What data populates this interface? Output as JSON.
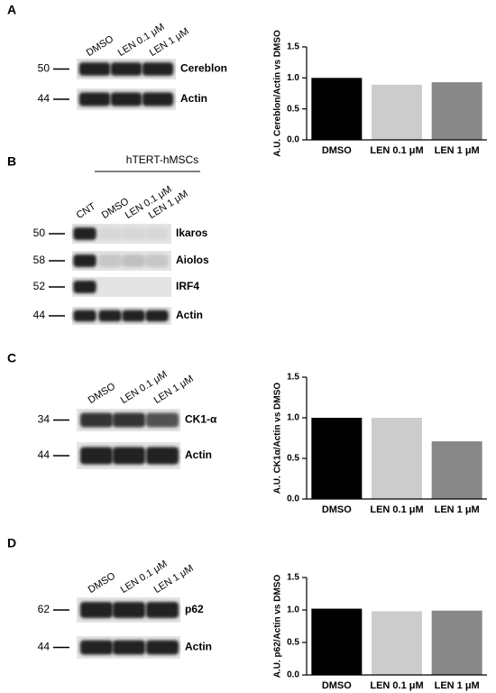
{
  "blots": [
    {
      "panel": "A",
      "lanes": [
        "DMSO",
        "LEN 0.1 μM",
        "LEN 1 μM"
      ],
      "rows": [
        {
          "marker": "50",
          "label": "Cereblon"
        },
        {
          "marker": "44",
          "label": "Actin"
        }
      ]
    },
    {
      "panel": "B",
      "group": "hTERT-hMSCs",
      "lanes": [
        "CNT",
        "DMSO",
        "LEN 0.1 μM",
        "LEN 1 μM"
      ],
      "rows": [
        {
          "marker": "50",
          "label": "Ikaros"
        },
        {
          "marker": "58",
          "label": "Aiolos"
        },
        {
          "marker": "52",
          "label": "IRF4"
        },
        {
          "marker": "44",
          "label": "Actin"
        }
      ]
    },
    {
      "panel": "C",
      "lanes": [
        "DMSO",
        "LEN 0.1 μM",
        "LEN 1 μM"
      ],
      "rows": [
        {
          "marker": "34",
          "label": "CK1-α"
        },
        {
          "marker": "44",
          "label": "Actin"
        }
      ]
    },
    {
      "panel": "D",
      "lanes": [
        "DMSO",
        "LEN 0.1 μM",
        "LEN 1 μM"
      ],
      "rows": [
        {
          "marker": "62",
          "label": "p62"
        },
        {
          "marker": "44",
          "label": "Actin"
        }
      ]
    }
  ],
  "chart_data": [
    {
      "type": "bar",
      "ylabel": "A.U. Cereblon/Actin vs DMSO",
      "categories": [
        "DMSO",
        "LEN 0.1 μM",
        "LEN 1 μM"
      ],
      "values": [
        1.0,
        0.89,
        0.93
      ],
      "colors": [
        "#000000",
        "#cccccc",
        "#888888"
      ],
      "ylim": [
        0,
        1.5
      ],
      "yticks": [
        {
          "value": 0,
          "label": "0.0"
        },
        {
          "value": 0.5,
          "label": "0.5"
        },
        {
          "value": 1,
          "label": "1.0"
        },
        {
          "value": 1.5,
          "label": "1.5"
        }
      ]
    },
    {
      "type": "bar",
      "ylabel": "A.U. CK1α/Actin vs DMSO",
      "categories": [
        "DMSO",
        "LEN 0.1 μM",
        "LEN 1 μM"
      ],
      "values": [
        1.0,
        1.0,
        0.71
      ],
      "colors": [
        "#000000",
        "#cccccc",
        "#888888"
      ],
      "ylim": [
        0,
        1.5
      ],
      "yticks": [
        {
          "value": 0,
          "label": "0.0"
        },
        {
          "value": 0.5,
          "label": "0.5"
        },
        {
          "value": 1,
          "label": "1.0"
        },
        {
          "value": 1.5,
          "label": "1.5"
        }
      ]
    },
    {
      "type": "bar",
      "ylabel": "A.U. p62/Actin vs DMSO",
      "categories": [
        "DMSO",
        "LEN 0.1 μM",
        "LEN 1 μM"
      ],
      "values": [
        1.02,
        0.98,
        0.99
      ],
      "colors": [
        "#000000",
        "#cccccc",
        "#888888"
      ],
      "ylim": [
        0,
        1.5
      ],
      "yticks": [
        {
          "value": 0,
          "label": "0.0"
        },
        {
          "value": 0.5,
          "label": "0.5"
        },
        {
          "value": 1,
          "label": "1.0"
        },
        {
          "value": 1.5,
          "label": "1.5"
        }
      ]
    }
  ]
}
